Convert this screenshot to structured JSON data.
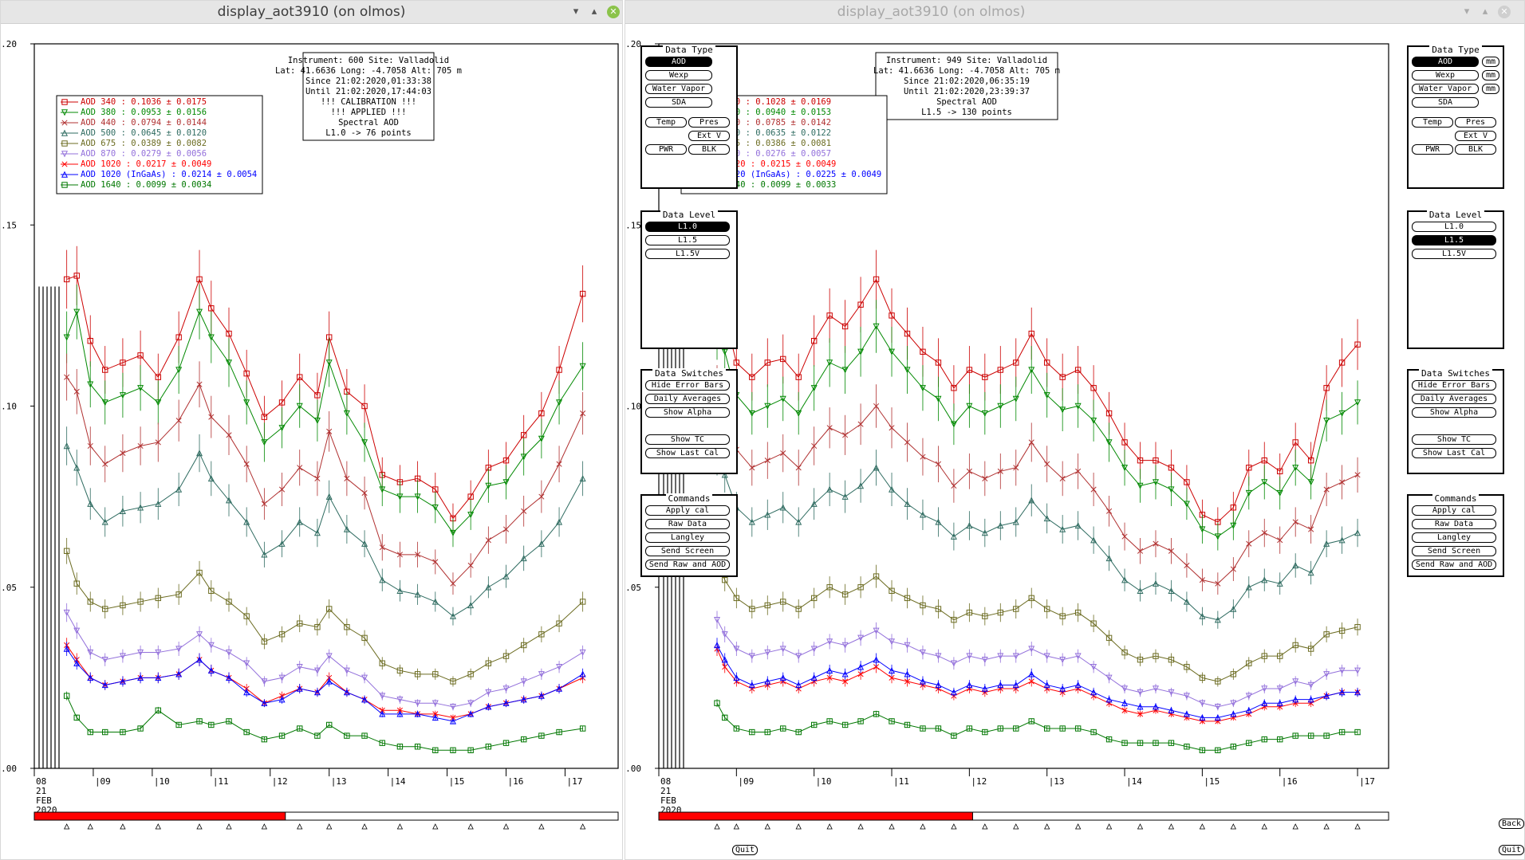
{
  "left_window": {
    "title": "display_aot3910 (on olmos)",
    "info": [
      "Instrument: 600 Site: Valladolid",
      "Lat: 41.6636 Long: -4.7058 Alt: 705 m",
      "Since 21:02:2020,01:33:38",
      "Until 21:02:2020,17:44:03",
      "!!! CALIBRATION !!!",
      "!!!   APPLIED   !!!",
      "Spectral AOD",
      "L1.0 -> 76 points"
    ],
    "legend": [
      {
        "label": "AOD 340   : 0.1036 ± 0.0175",
        "color": "#cc0000"
      },
      {
        "label": "AOD 380   : 0.0953 ± 0.0156",
        "color": "#008800"
      },
      {
        "label": "AOD 440   : 0.0794 ± 0.0144",
        "color": "#b03030"
      },
      {
        "label": "AOD 500   : 0.0645 ± 0.0120",
        "color": "#2e6b60"
      },
      {
        "label": "AOD 675   : 0.0389 ± 0.0082",
        "color": "#6b6b20"
      },
      {
        "label": "AOD 870   : 0.0279 ± 0.0056",
        "color": "#9370db"
      },
      {
        "label": "AOD 1020  : 0.0217 ± 0.0049",
        "color": "#ff0000"
      },
      {
        "label": "AOD 1020 (InGaAs)  : 0.0214 ± 0.0054",
        "color": "#0000ff"
      },
      {
        "label": "AOD 1640  : 0.0099 ± 0.0034",
        "color": "#007700"
      }
    ],
    "active_level": "L1.0"
  },
  "right_window": {
    "title": "display_aot3910 (on olmos)",
    "info": [
      "Instrument: 949 Site: Valladolid",
      "Lat: 41.6636 Long: -4.7058 Alt: 705 m",
      "Since 21:02:2020,06:35:19",
      "Until 21:02:2020,23:39:37",
      "Spectral AOD",
      "L1.5 -> 130 points"
    ],
    "legend": [
      {
        "label": "AOD 340   : 0.1028 ± 0.0169",
        "color": "#cc0000"
      },
      {
        "label": "AOD 380   : 0.0940 ± 0.0153",
        "color": "#008800"
      },
      {
        "label": "AOD 440   : 0.0785 ± 0.0142",
        "color": "#b03030"
      },
      {
        "label": "AOD 500   : 0.0635 ± 0.0122",
        "color": "#2e6b60"
      },
      {
        "label": "AOD 675   : 0.0386 ± 0.0081",
        "color": "#6b6b20"
      },
      {
        "label": "AOD 870   : 0.0276 ± 0.0057",
        "color": "#9370db"
      },
      {
        "label": "AOD 1020  : 0.0215 ± 0.0049",
        "color": "#ff0000"
      },
      {
        "label": "AOD 1020 (InGaAs)  : 0.0225 ± 0.0049",
        "color": "#0000ff"
      },
      {
        "label": "AOD 1640  : 0.0099 ± 0.0033",
        "color": "#007700"
      }
    ],
    "active_level": "L1.5"
  },
  "axis": {
    "y_ticks": [
      "0.20",
      "0.15",
      "0.10",
      "0.05",
      "0.00"
    ],
    "x_ticks": [
      "08",
      "09",
      "10",
      "11",
      "12",
      "13",
      "14",
      "15",
      "16",
      "17"
    ],
    "date_label": [
      "21",
      "FEB",
      "2020"
    ]
  },
  "panels": {
    "data_type": {
      "title": "Data Type",
      "aod": "AOD",
      "wexp": "Wexp",
      "water_vapor": "Water Vapor",
      "sda": "SDA",
      "temp": "Temp",
      "pres": "Pres",
      "ext_v": "Ext V",
      "pwr": "PWR",
      "blk": "BLK",
      "mm": "mm"
    },
    "data_level": {
      "title": "Data Level",
      "levels": [
        "L1.0",
        "L1.5",
        "L1.5V"
      ]
    },
    "data_switches": {
      "title": "Data Switches",
      "hide_error_bars": "Hide Error Bars",
      "daily_averages": "Daily Averages",
      "show_alpha": "Show Alpha",
      "show_tc": "Show TC",
      "show_last_cal": "Show Last Cal"
    },
    "commands": {
      "title": "Commands",
      "apply_cal": "Apply cal",
      "raw_data": "Raw Data",
      "langley": "Langley",
      "send_screen": "Send Screen",
      "send_raw_aod": "Send Raw and AOD"
    },
    "quit": "Quit",
    "back": "Back"
  },
  "chart_data": [
    {
      "type": "line",
      "x_unit": "hour UTC, 21 Feb 2020",
      "ylim": [
        0,
        0.2
      ],
      "xlim": [
        8,
        17.9
      ],
      "x": [
        8.55,
        8.72,
        8.95,
        9.2,
        9.5,
        9.8,
        10.1,
        10.45,
        10.8,
        11.0,
        11.3,
        11.6,
        11.9,
        12.2,
        12.5,
        12.8,
        13.0,
        13.3,
        13.6,
        13.9,
        14.2,
        14.5,
        14.8,
        15.1,
        15.4,
        15.7,
        16.0,
        16.3,
        16.6,
        16.9,
        17.3
      ],
      "series": [
        {
          "name": "AOD 340",
          "color": "#cc0000",
          "values": [
            0.135,
            0.136,
            0.118,
            0.11,
            0.112,
            0.114,
            0.108,
            0.119,
            0.135,
            0.127,
            0.12,
            0.109,
            0.097,
            0.101,
            0.108,
            0.103,
            0.119,
            0.104,
            0.1,
            0.081,
            0.079,
            0.08,
            0.077,
            0.069,
            0.075,
            0.083,
            0.085,
            0.092,
            0.098,
            0.11,
            0.131
          ]
        },
        {
          "name": "AOD 380",
          "color": "#008800",
          "values": [
            0.119,
            0.126,
            0.106,
            0.101,
            0.103,
            0.105,
            0.101,
            0.11,
            0.126,
            0.119,
            0.112,
            0.101,
            0.09,
            0.094,
            0.1,
            0.096,
            0.112,
            0.098,
            0.09,
            0.077,
            0.075,
            0.075,
            0.072,
            0.065,
            0.07,
            0.078,
            0.079,
            0.086,
            0.091,
            0.101,
            0.111
          ]
        },
        {
          "name": "AOD 440",
          "color": "#b03030",
          "values": [
            0.108,
            0.104,
            0.089,
            0.084,
            0.087,
            0.089,
            0.09,
            0.096,
            0.106,
            0.097,
            0.092,
            0.084,
            0.073,
            0.077,
            0.083,
            0.08,
            0.093,
            0.08,
            0.076,
            0.061,
            0.059,
            0.059,
            0.057,
            0.051,
            0.056,
            0.063,
            0.066,
            0.071,
            0.075,
            0.084,
            0.098
          ]
        },
        {
          "name": "AOD 500",
          "color": "#2e6b60",
          "values": [
            0.089,
            0.083,
            0.073,
            0.068,
            0.071,
            0.072,
            0.073,
            0.077,
            0.087,
            0.08,
            0.074,
            0.068,
            0.059,
            0.062,
            0.068,
            0.065,
            0.075,
            0.066,
            0.062,
            0.052,
            0.049,
            0.048,
            0.046,
            0.042,
            0.045,
            0.05,
            0.053,
            0.058,
            0.062,
            0.068,
            0.08
          ]
        },
        {
          "name": "AOD 675",
          "color": "#6b6b20",
          "values": [
            0.06,
            0.051,
            0.046,
            0.044,
            0.045,
            0.046,
            0.047,
            0.048,
            0.054,
            0.049,
            0.046,
            0.042,
            0.035,
            0.037,
            0.04,
            0.039,
            0.044,
            0.039,
            0.036,
            0.029,
            0.027,
            0.026,
            0.026,
            0.024,
            0.026,
            0.029,
            0.031,
            0.034,
            0.037,
            0.04,
            0.046
          ]
        },
        {
          "name": "AOD 870",
          "color": "#9370db",
          "values": [
            0.043,
            0.038,
            0.032,
            0.03,
            0.031,
            0.032,
            0.032,
            0.033,
            0.037,
            0.034,
            0.032,
            0.029,
            0.024,
            0.025,
            0.028,
            0.027,
            0.031,
            0.027,
            0.025,
            0.02,
            0.019,
            0.018,
            0.018,
            0.017,
            0.018,
            0.021,
            0.022,
            0.024,
            0.026,
            0.028,
            0.032
          ]
        },
        {
          "name": "AOD 1020",
          "color": "#ff0000",
          "values": [
            0.034,
            0.03,
            0.025,
            0.023,
            0.024,
            0.025,
            0.025,
            0.026,
            0.03,
            0.027,
            0.025,
            0.022,
            0.018,
            0.02,
            0.022,
            0.021,
            0.025,
            0.021,
            0.019,
            0.016,
            0.016,
            0.015,
            0.015,
            0.014,
            0.015,
            0.017,
            0.018,
            0.019,
            0.02,
            0.022,
            0.025
          ]
        },
        {
          "name": "AOD 1020 (InGaAs)",
          "color": "#0000ff",
          "values": [
            0.033,
            0.029,
            0.025,
            0.023,
            0.024,
            0.025,
            0.025,
            0.026,
            0.03,
            0.027,
            0.025,
            0.021,
            0.018,
            0.019,
            0.022,
            0.021,
            0.024,
            0.021,
            0.019,
            0.015,
            0.015,
            0.015,
            0.014,
            0.013,
            0.015,
            0.017,
            0.018,
            0.019,
            0.02,
            0.022,
            0.026
          ]
        },
        {
          "name": "AOD 1640",
          "color": "#007700",
          "values": [
            0.02,
            0.014,
            0.01,
            0.01,
            0.01,
            0.011,
            0.016,
            0.012,
            0.013,
            0.012,
            0.013,
            0.01,
            0.008,
            0.009,
            0.011,
            0.009,
            0.012,
            0.009,
            0.009,
            0.007,
            0.006,
            0.006,
            0.005,
            0.005,
            0.005,
            0.006,
            0.007,
            0.008,
            0.009,
            0.01,
            0.011
          ]
        }
      ]
    },
    {
      "type": "line",
      "x_unit": "hour UTC, 21 Feb 2020",
      "ylim": [
        0,
        0.2
      ],
      "xlim": [
        8,
        17.4
      ],
      "x": [
        8.75,
        8.85,
        9.0,
        9.2,
        9.4,
        9.6,
        9.8,
        10.0,
        10.2,
        10.4,
        10.6,
        10.8,
        11.0,
        11.2,
        11.4,
        11.6,
        11.8,
        12.0,
        12.2,
        12.4,
        12.6,
        12.8,
        13.0,
        13.2,
        13.4,
        13.6,
        13.8,
        14.0,
        14.2,
        14.4,
        14.6,
        14.8,
        15.0,
        15.2,
        15.4,
        15.6,
        15.8,
        16.0,
        16.2,
        16.4,
        16.6,
        16.8,
        17.0
      ],
      "series": [
        {
          "name": "AOD 340",
          "color": "#cc0000",
          "values": [
            0.137,
            0.125,
            0.112,
            0.108,
            0.112,
            0.113,
            0.108,
            0.118,
            0.125,
            0.122,
            0.128,
            0.135,
            0.125,
            0.12,
            0.115,
            0.112,
            0.105,
            0.11,
            0.108,
            0.11,
            0.112,
            0.12,
            0.112,
            0.108,
            0.11,
            0.105,
            0.098,
            0.09,
            0.085,
            0.085,
            0.083,
            0.079,
            0.07,
            0.068,
            0.072,
            0.083,
            0.085,
            0.082,
            0.09,
            0.085,
            0.105,
            0.112,
            0.117
          ]
        },
        {
          "name": "AOD 380",
          "color": "#008800",
          "values": [
            0.12,
            0.115,
            0.103,
            0.098,
            0.1,
            0.102,
            0.098,
            0.105,
            0.112,
            0.11,
            0.115,
            0.122,
            0.115,
            0.11,
            0.105,
            0.102,
            0.095,
            0.1,
            0.098,
            0.1,
            0.102,
            0.11,
            0.103,
            0.099,
            0.1,
            0.096,
            0.09,
            0.083,
            0.078,
            0.079,
            0.077,
            0.073,
            0.066,
            0.064,
            0.067,
            0.076,
            0.079,
            0.076,
            0.083,
            0.079,
            0.096,
            0.098,
            0.101
          ]
        },
        {
          "name": "AOD 440",
          "color": "#b03030",
          "values": [
            0.105,
            0.098,
            0.088,
            0.083,
            0.085,
            0.087,
            0.083,
            0.089,
            0.094,
            0.092,
            0.095,
            0.1,
            0.094,
            0.09,
            0.086,
            0.084,
            0.078,
            0.082,
            0.08,
            0.082,
            0.083,
            0.09,
            0.084,
            0.08,
            0.082,
            0.077,
            0.071,
            0.064,
            0.06,
            0.062,
            0.06,
            0.056,
            0.052,
            0.051,
            0.055,
            0.062,
            0.065,
            0.063,
            0.068,
            0.066,
            0.077,
            0.079,
            0.081
          ]
        },
        {
          "name": "AOD 500",
          "color": "#2e6b60",
          "values": [
            0.086,
            0.081,
            0.072,
            0.068,
            0.07,
            0.072,
            0.068,
            0.073,
            0.077,
            0.075,
            0.078,
            0.083,
            0.077,
            0.073,
            0.07,
            0.068,
            0.064,
            0.067,
            0.065,
            0.067,
            0.068,
            0.074,
            0.069,
            0.066,
            0.067,
            0.063,
            0.058,
            0.052,
            0.049,
            0.051,
            0.049,
            0.046,
            0.042,
            0.041,
            0.044,
            0.05,
            0.052,
            0.051,
            0.056,
            0.054,
            0.062,
            0.063,
            0.065
          ]
        },
        {
          "name": "AOD 675",
          "color": "#6b6b20",
          "values": [
            0.057,
            0.052,
            0.047,
            0.044,
            0.045,
            0.046,
            0.044,
            0.047,
            0.05,
            0.048,
            0.05,
            0.053,
            0.049,
            0.047,
            0.045,
            0.044,
            0.041,
            0.043,
            0.042,
            0.043,
            0.044,
            0.047,
            0.044,
            0.042,
            0.043,
            0.04,
            0.036,
            0.032,
            0.03,
            0.031,
            0.03,
            0.028,
            0.025,
            0.024,
            0.026,
            0.029,
            0.031,
            0.031,
            0.034,
            0.033,
            0.037,
            0.038,
            0.039
          ]
        },
        {
          "name": "AOD 870",
          "color": "#9370db",
          "values": [
            0.041,
            0.037,
            0.033,
            0.031,
            0.032,
            0.033,
            0.031,
            0.033,
            0.035,
            0.034,
            0.036,
            0.038,
            0.035,
            0.034,
            0.032,
            0.031,
            0.029,
            0.031,
            0.03,
            0.031,
            0.031,
            0.033,
            0.031,
            0.03,
            0.031,
            0.028,
            0.025,
            0.022,
            0.021,
            0.022,
            0.021,
            0.02,
            0.018,
            0.017,
            0.018,
            0.02,
            0.022,
            0.022,
            0.024,
            0.023,
            0.026,
            0.027,
            0.027
          ]
        },
        {
          "name": "AOD 1020",
          "color": "#ff0000",
          "values": [
            0.033,
            0.028,
            0.024,
            0.022,
            0.023,
            0.024,
            0.022,
            0.024,
            0.025,
            0.024,
            0.026,
            0.028,
            0.025,
            0.024,
            0.023,
            0.022,
            0.02,
            0.022,
            0.021,
            0.022,
            0.022,
            0.024,
            0.022,
            0.021,
            0.022,
            0.02,
            0.018,
            0.016,
            0.015,
            0.016,
            0.015,
            0.014,
            0.013,
            0.013,
            0.014,
            0.015,
            0.017,
            0.017,
            0.018,
            0.018,
            0.02,
            0.021,
            0.021
          ]
        },
        {
          "name": "AOD 1020 (InGaAs)",
          "color": "#0000ff",
          "values": [
            0.034,
            0.03,
            0.025,
            0.023,
            0.024,
            0.025,
            0.023,
            0.025,
            0.027,
            0.026,
            0.028,
            0.03,
            0.027,
            0.026,
            0.024,
            0.023,
            0.021,
            0.023,
            0.022,
            0.023,
            0.023,
            0.026,
            0.023,
            0.022,
            0.023,
            0.021,
            0.019,
            0.018,
            0.017,
            0.017,
            0.016,
            0.015,
            0.014,
            0.014,
            0.015,
            0.016,
            0.018,
            0.018,
            0.019,
            0.019,
            0.02,
            0.021,
            0.021
          ]
        },
        {
          "name": "AOD 1640",
          "color": "#007700",
          "values": [
            0.018,
            0.014,
            0.011,
            0.01,
            0.01,
            0.011,
            0.01,
            0.012,
            0.013,
            0.012,
            0.013,
            0.015,
            0.013,
            0.012,
            0.011,
            0.011,
            0.009,
            0.011,
            0.01,
            0.011,
            0.011,
            0.013,
            0.011,
            0.011,
            0.011,
            0.01,
            0.008,
            0.007,
            0.007,
            0.007,
            0.007,
            0.006,
            0.005,
            0.005,
            0.006,
            0.007,
            0.008,
            0.008,
            0.009,
            0.009,
            0.009,
            0.01,
            0.01
          ]
        }
      ]
    }
  ]
}
